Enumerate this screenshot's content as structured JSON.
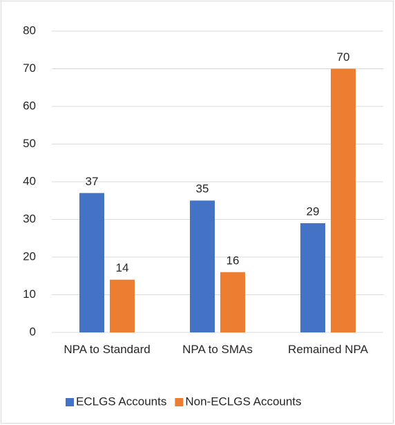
{
  "chart_data": {
    "type": "bar",
    "categories": [
      "NPA to Standard",
      "NPA to SMAs",
      "Remained NPA"
    ],
    "series": [
      {
        "name": "ECLGS Accounts",
        "color": "#4472c4",
        "values": [
          37,
          35,
          29
        ]
      },
      {
        "name": "Non-ECLGS Accounts",
        "color": "#ed7d31",
        "values": [
          14,
          16,
          70
        ]
      }
    ],
    "ylim": [
      0,
      80
    ],
    "yticks": [
      0,
      10,
      20,
      30,
      40,
      50,
      60,
      70,
      80
    ],
    "grid": true,
    "legend": "bottom"
  }
}
